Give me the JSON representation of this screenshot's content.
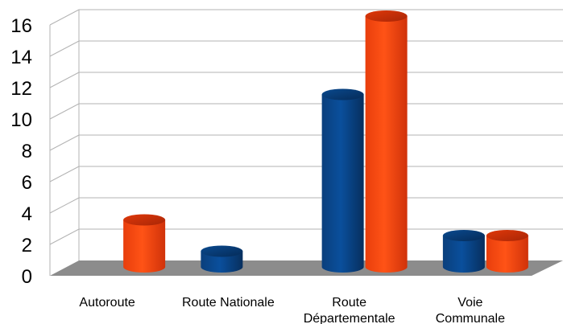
{
  "chart_data": {
    "type": "bar",
    "title": "",
    "xlabel": "",
    "ylabel": "",
    "categories": [
      "Autoroute",
      "Route Nationale",
      "Route Départementale",
      "Voie Communale"
    ],
    "category_lines": [
      [
        "Autoroute"
      ],
      [
        "Route Nationale"
      ],
      [
        "Route",
        "Départementale"
      ],
      [
        "Voie",
        "Communale"
      ]
    ],
    "yticks": [
      "0",
      "2",
      "4",
      "6",
      "8",
      "10",
      "12",
      "14",
      "16"
    ],
    "ylim": [
      0,
      16
    ],
    "grid": true,
    "legend": "none",
    "bar_shape": "3d-cylinder",
    "series": [
      {
        "color": "#0a4a8f",
        "values": [
          null,
          1,
          11,
          2
        ]
      },
      {
        "color": "#ff4a12",
        "values": [
          3,
          null,
          16,
          2
        ]
      }
    ]
  }
}
